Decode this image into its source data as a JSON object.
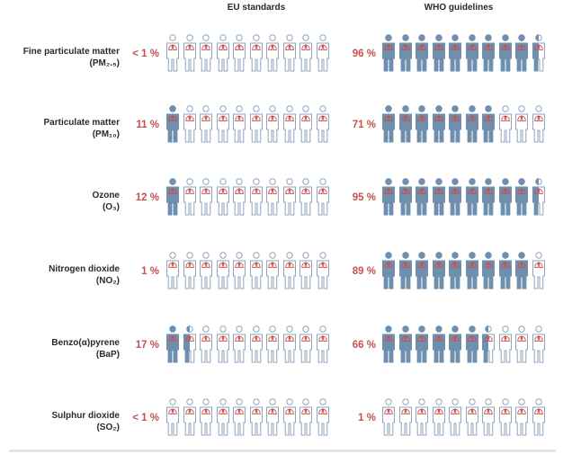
{
  "headers": {
    "eu": "EU standards",
    "who": "WHO guidelines"
  },
  "colors": {
    "filled": "#6f8fae",
    "outline": "#8ea6bf",
    "lungs": "#c8504f",
    "percent": "#c8504f",
    "text": "#2b2b2b"
  },
  "chart_data": {
    "type": "pictograph",
    "unit": "people out of 10",
    "series": [
      {
        "name": "EU standards",
        "values": [
          0.0,
          1.0,
          1.0,
          0.0,
          1.5,
          0.0
        ]
      },
      {
        "name": "WHO guidelines",
        "values": [
          9.5,
          7.0,
          9.5,
          9.0,
          6.5,
          0.0
        ]
      }
    ],
    "rows": [
      {
        "name": "Fine particulate matter",
        "sub": "(PM₂.₅)",
        "eu_label": "< 1 %",
        "who_label": "96 %",
        "eu_fill": 0.0,
        "who_fill": 9.5
      },
      {
        "name": "Particulate matter",
        "sub": "(PM₁₀)",
        "eu_label": "11 %",
        "who_label": "71 %",
        "eu_fill": 1.0,
        "who_fill": 7.0
      },
      {
        "name": "Ozone",
        "sub": "(O₃)",
        "eu_label": "12 %",
        "who_label": "95 %",
        "eu_fill": 1.0,
        "who_fill": 9.5
      },
      {
        "name": "Nitrogen dioxide",
        "sub": "(NO₂)",
        "eu_label": "1 %",
        "who_label": "89 %",
        "eu_fill": 0.0,
        "who_fill": 9.0
      },
      {
        "name": "Benzo(α)pyrene",
        "sub": "(BaP)",
        "eu_label": "17 %",
        "who_label": "66 %",
        "eu_fill": 1.5,
        "who_fill": 6.5
      },
      {
        "name": "Sulphur dioxide",
        "sub": "(SO₂)",
        "eu_label": "< 1 %",
        "who_label": "1 %",
        "eu_fill": 0.0,
        "who_fill": 0.0
      }
    ]
  }
}
